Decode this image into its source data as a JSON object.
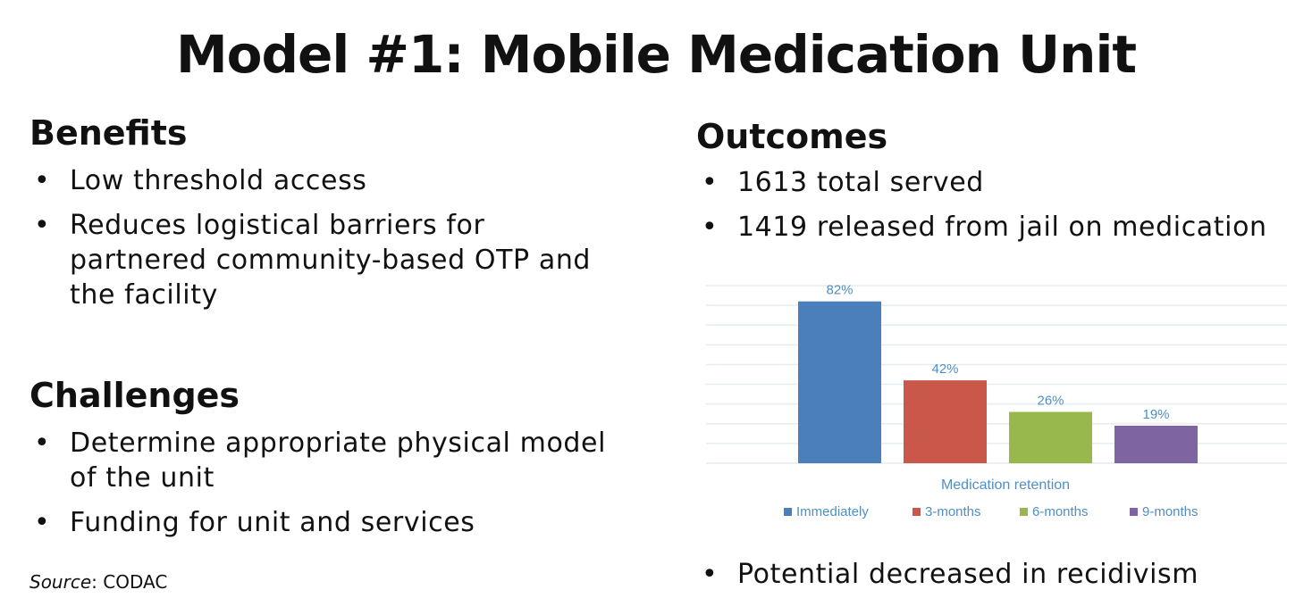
{
  "title": "Model #1: Mobile Medication Unit",
  "benefits": {
    "heading": "Benefits",
    "items": [
      "Low threshold access",
      "Reduces logistical barriers for partnered community-based OTP and the facility"
    ]
  },
  "challenges": {
    "heading": "Challenges",
    "items": [
      "Determine appropriate physical model of the unit",
      "Funding for unit and services"
    ]
  },
  "source": {
    "label": "Source",
    "text": ": CODAC"
  },
  "outcomes": {
    "heading": "Outcomes",
    "items": [
      "1613 total served",
      "1419 released from jail on medication"
    ],
    "footer_item": "Potential decreased in recidivism"
  },
  "chart_data": {
    "type": "bar",
    "title": "",
    "xlabel": "Medication retention",
    "ylabel": "",
    "ylim": [
      0,
      90
    ],
    "grid": true,
    "legend_position": "bottom",
    "categories": [
      "Immediately",
      "3-months",
      "6-months",
      "9-months"
    ],
    "values": [
      82,
      42,
      26,
      19
    ],
    "value_labels": [
      "82%",
      "42%",
      "26%",
      "19%"
    ],
    "colors": [
      "#4a7fbb",
      "#c9584a",
      "#98b84d",
      "#7e64a0"
    ],
    "legend": [
      "Immediately",
      "3-months",
      "6-months",
      "9-months"
    ]
  }
}
